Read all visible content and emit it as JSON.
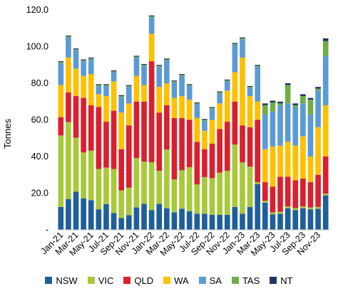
{
  "chart_data": {
    "type": "bar",
    "stacked": true,
    "title": "",
    "xlabel": "",
    "ylabel": "Tonnes",
    "ylim": [
      0,
      120
    ],
    "yticks": [
      "-",
      "20.0",
      "40.0",
      "60.0",
      "80.0",
      "100.0",
      "120.0"
    ],
    "grid": false,
    "legend_position": "bottom",
    "categories": [
      "Jan-21",
      "Feb-21",
      "Mar-21",
      "Apr-21",
      "May-21",
      "Jun-21",
      "Jul-21",
      "Aug-21",
      "Sep-21",
      "Oct-21",
      "Nov-21",
      "Dec-21",
      "Jan-22",
      "Feb-22",
      "Mar-22",
      "Apr-22",
      "May-22",
      "Jun-22",
      "Jul-22",
      "Aug-22",
      "Sep-22",
      "Oct-22",
      "Nov-22",
      "Dec-22",
      "Jan-23",
      "Feb-23",
      "Mar-23",
      "Apr-23",
      "May-23",
      "Jun-23",
      "Jul-23",
      "Aug-23",
      "Sep-23",
      "Oct-23",
      "Nov-23",
      "Dec-23"
    ],
    "tick_labels": [
      "Jan-21",
      "Mar-21",
      "May-21",
      "Jul-21",
      "Sep-21",
      "Nov-21",
      "Jan-22",
      "Mar-22",
      "May-22",
      "Jul-22",
      "Sep-22",
      "Nov-22",
      "Jan-23",
      "Mar-23",
      "May-23",
      "Jul-23",
      "Sep-23",
      "Nov-23"
    ],
    "series": [
      {
        "name": "NSW",
        "color": "#1f5f99",
        "values": [
          12.5,
          16.8,
          20.8,
          17.2,
          16.2,
          11.2,
          14.0,
          9.2,
          6.5,
          8.0,
          12.2,
          14.2,
          10.8,
          14.2,
          11.8,
          9.5,
          11.5,
          10.2,
          8.8,
          8.8,
          8.2,
          8.2,
          8.2,
          12.5,
          8.8,
          12.5,
          25.0,
          14.8,
          8.5,
          8.8,
          11.8,
          10.8,
          11.8,
          11.2,
          11.5,
          18.8
        ]
      },
      {
        "name": "VIC",
        "color": "#a8c93a",
        "values": [
          39.0,
          42.0,
          29.5,
          25.0,
          27.0,
          22.0,
          20.0,
          24.0,
          15.0,
          15.0,
          27.0,
          23.0,
          26.0,
          18.0,
          32.0,
          18.0,
          21.0,
          24.0,
          16.0,
          20.0,
          20.0,
          23.0,
          24.0,
          34.0,
          28.0,
          22.0,
          1.0,
          1.0,
          1.0,
          1.0,
          1.0,
          1.0,
          1.0,
          1.0,
          1.0,
          1.0
        ]
      },
      {
        "name": "QLD",
        "color": "#d9202e",
        "values": [
          10.0,
          16.2,
          22.7,
          29.8,
          24.8,
          33.8,
          25.0,
          31.8,
          22.5,
          34.0,
          30.8,
          32.8,
          55.2,
          31.8,
          24.2,
          33.5,
          28.5,
          25.8,
          23.2,
          15.2,
          18.8,
          23.8,
          26.8,
          23.5,
          20.2,
          21.5,
          34.0,
          10.2,
          14.0,
          19.2,
          16.2,
          15.2,
          15.2,
          13.8,
          17.5,
          20.2
        ]
      },
      {
        "name": "WA",
        "color": "#ffc000",
        "values": [
          17.5,
          19.0,
          15.0,
          12.0,
          17.0,
          7.0,
          14.0,
          16.0,
          20.0,
          12.0,
          14.0,
          9.0,
          15.0,
          14.0,
          12.0,
          11.0,
          12.0,
          11.0,
          13.0,
          10.0,
          13.0,
          14.0,
          17.0,
          16.0,
          37.0,
          17.0,
          10.0,
          18.0,
          22.0,
          17.0,
          19.0,
          19.0,
          23.0,
          14.0,
          26.0,
          28.0
        ]
      },
      {
        "name": "SA",
        "color": "#5b9bd5",
        "values": [
          12.0,
          11.0,
          10.0,
          8.0,
          8.0,
          4.5,
          5.5,
          5.0,
          8.5,
          9.0,
          10.0,
          10.5,
          9.0,
          11.0,
          12.5,
          8.5,
          11.0,
          7.5,
          7.5,
          5.5,
          6.0,
          5.5,
          5.0,
          15.0,
          10.0,
          4.5,
          19.0,
          19.0,
          19.0,
          22.0,
          21.0,
          21.0,
          18.0,
          23.0,
          20.0,
          27.0
        ]
      },
      {
        "name": "TAS",
        "color": "#70ad47",
        "values": [
          0.5,
          0.5,
          0.5,
          0.5,
          0.5,
          0.5,
          0.5,
          0.5,
          0.5,
          0.5,
          0.5,
          0.5,
          0.5,
          0.5,
          0.5,
          0.5,
          0.5,
          0.5,
          0.5,
          0.5,
          0.5,
          0.5,
          0.5,
          0.5,
          0.5,
          0.5,
          0.5,
          5.0,
          5.0,
          1.0,
          10.0,
          1.0,
          4.0,
          8.0,
          1.0,
          8.0
        ]
      },
      {
        "name": "NT",
        "color": "#1f3864",
        "values": [
          0.5,
          0.5,
          0.5,
          0.5,
          0.5,
          0.5,
          0.5,
          0.5,
          0.5,
          0.5,
          0.5,
          0.5,
          0.5,
          0.5,
          0.5,
          0.5,
          0.5,
          0.5,
          0.5,
          0.5,
          0.5,
          0.5,
          0.5,
          0.5,
          0.5,
          0.5,
          0.5,
          1.0,
          1.0,
          1.0,
          1.0,
          1.0,
          1.0,
          1.0,
          1.0,
          1.5
        ]
      }
    ]
  }
}
